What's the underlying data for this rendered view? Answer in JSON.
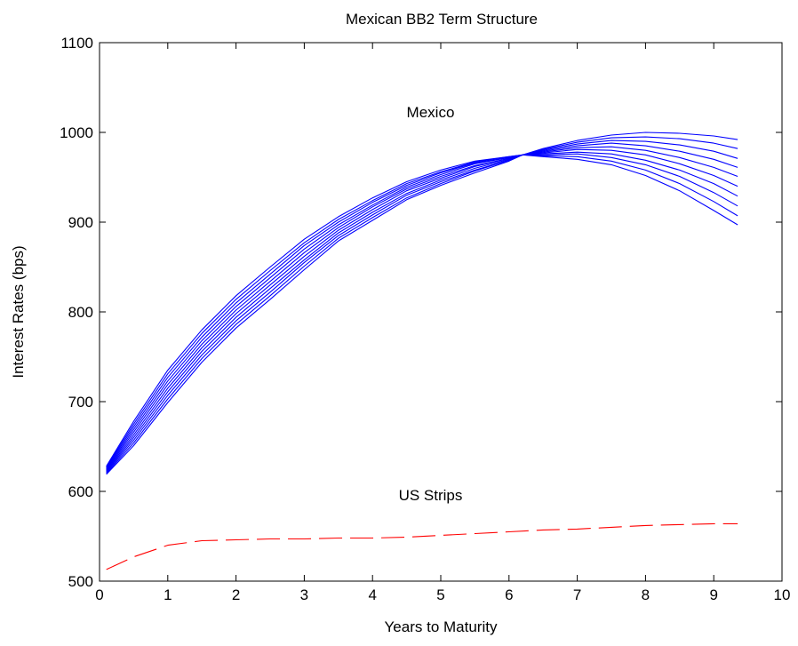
{
  "chart_data": {
    "type": "line",
    "title": "Mexican BB2 Term Structure",
    "xlabel": "Years to Maturity",
    "ylabel": "Interest Rates (bps)",
    "xlim": [
      0,
      10
    ],
    "ylim": [
      500,
      1100
    ],
    "xticks": [
      0,
      1,
      2,
      3,
      4,
      5,
      6,
      7,
      8,
      9,
      10
    ],
    "yticks": [
      500,
      600,
      700,
      800,
      900,
      1000,
      1100
    ],
    "grid": false,
    "annotations": [
      {
        "text": "Mexico",
        "x": 4.85,
        "y": 1017
      },
      {
        "text": "US Strips",
        "x": 4.85,
        "y": 590
      }
    ],
    "series": [
      {
        "color": "#0000ff",
        "style": "solid",
        "x": [
          0.1,
          0.5,
          1,
          1.5,
          2,
          2.5,
          3,
          3.5,
          4,
          4.5,
          5,
          5.5,
          6,
          6.2,
          6.5,
          7,
          7.5,
          8,
          8.5,
          9,
          9.35
        ],
        "y": [
          628,
          678,
          735,
          780,
          818,
          850,
          881,
          906,
          927,
          945,
          958,
          968,
          973,
          975,
          982,
          991,
          997,
          1000,
          999,
          996,
          992
        ]
      },
      {
        "color": "#0000ff",
        "style": "solid",
        "x": [
          0.1,
          0.5,
          1,
          1.5,
          2,
          2.5,
          3,
          3.5,
          4,
          4.5,
          5,
          5.5,
          6,
          6.2,
          6.5,
          7,
          7.5,
          8,
          8.5,
          9,
          9.35
        ],
        "y": [
          627,
          675,
          731,
          776,
          814,
          846,
          877,
          903,
          924,
          943,
          956,
          967,
          973,
          975,
          981,
          989,
          994,
          995,
          993,
          988,
          982
        ]
      },
      {
        "color": "#0000ff",
        "style": "solid",
        "x": [
          0.1,
          0.5,
          1,
          1.5,
          2,
          2.5,
          3,
          3.5,
          4,
          4.5,
          5,
          5.5,
          6,
          6.2,
          6.5,
          7,
          7.5,
          8,
          8.5,
          9,
          9.35
        ],
        "y": [
          626,
          672,
          727,
          772,
          810,
          842,
          874,
          900,
          922,
          941,
          955,
          966,
          972,
          975,
          980,
          987,
          991,
          990,
          986,
          979,
          971
        ]
      },
      {
        "color": "#0000ff",
        "style": "solid",
        "x": [
          0.1,
          0.5,
          1,
          1.5,
          2,
          2.5,
          3,
          3.5,
          4,
          4.5,
          5,
          5.5,
          6,
          6.2,
          6.5,
          7,
          7.5,
          8,
          8.5,
          9,
          9.35
        ],
        "y": [
          625,
          669,
          723,
          768,
          806,
          838,
          870,
          897,
          919,
          939,
          953,
          965,
          972,
          975,
          979,
          985,
          988,
          985,
          979,
          970,
          961
        ]
      },
      {
        "color": "#0000ff",
        "style": "solid",
        "x": [
          0.1,
          0.5,
          1,
          1.5,
          2,
          2.5,
          3,
          3.5,
          4,
          4.5,
          5,
          5.5,
          6,
          6.2,
          6.5,
          7,
          7.5,
          8,
          8.5,
          9,
          9.35
        ],
        "y": [
          624,
          666,
          719,
          764,
          802,
          834,
          866,
          894,
          917,
          937,
          951,
          963,
          971,
          975,
          978,
          983,
          984,
          980,
          972,
          961,
          951
        ]
      },
      {
        "color": "#0000ff",
        "style": "solid",
        "x": [
          0.1,
          0.5,
          1,
          1.5,
          2,
          2.5,
          3,
          3.5,
          4,
          4.5,
          5,
          5.5,
          6,
          6.2,
          6.5,
          7,
          7.5,
          8,
          8.5,
          9,
          9.35
        ],
        "y": [
          623,
          663,
          715,
          760,
          798,
          830,
          862,
          891,
          914,
          935,
          949,
          962,
          971,
          975,
          977,
          981,
          980,
          975,
          965,
          952,
          940
        ]
      },
      {
        "color": "#0000ff",
        "style": "solid",
        "x": [
          0.1,
          0.5,
          1,
          1.5,
          2,
          2.5,
          3,
          3.5,
          4,
          4.5,
          5,
          5.5,
          6,
          6.2,
          6.5,
          7,
          7.5,
          8,
          8.5,
          9,
          9.35
        ],
        "y": [
          622,
          660,
          711,
          756,
          794,
          826,
          858,
          888,
          911,
          932,
          947,
          960,
          970,
          975,
          976,
          978,
          976,
          969,
          958,
          943,
          929
        ]
      },
      {
        "color": "#0000ff",
        "style": "solid",
        "x": [
          0.1,
          0.5,
          1,
          1.5,
          2,
          2.5,
          3,
          3.5,
          4,
          4.5,
          5,
          5.5,
          6,
          6.2,
          6.5,
          7,
          7.5,
          8,
          8.5,
          9,
          9.35
        ],
        "y": [
          621,
          657,
          707,
          752,
          790,
          822,
          855,
          885,
          908,
          930,
          945,
          958,
          969,
          975,
          975,
          976,
          972,
          964,
          951,
          933,
          918
        ]
      },
      {
        "color": "#0000ff",
        "style": "solid",
        "x": [
          0.1,
          0.5,
          1,
          1.5,
          2,
          2.5,
          3,
          3.5,
          4,
          4.5,
          5,
          5.5,
          6,
          6.2,
          6.5,
          7,
          7.5,
          8,
          8.5,
          9,
          9.35
        ],
        "y": [
          620,
          654,
          703,
          748,
          786,
          818,
          851,
          882,
          905,
          927,
          943,
          957,
          969,
          975,
          974,
          973,
          968,
          958,
          943,
          923,
          907
        ]
      },
      {
        "color": "#0000ff",
        "style": "solid",
        "x": [
          0.1,
          0.5,
          1,
          1.5,
          2,
          2.5,
          3,
          3.5,
          4,
          4.5,
          5,
          5.5,
          6,
          6.2,
          6.5,
          7,
          7.5,
          8,
          8.5,
          9,
          9.35
        ],
        "y": [
          619,
          651,
          699,
          744,
          782,
          814,
          847,
          879,
          902,
          925,
          941,
          955,
          968,
          975,
          973,
          970,
          964,
          952,
          935,
          913,
          897
        ]
      },
      {
        "color": "#ff0000",
        "style": "dashed",
        "x": [
          0.1,
          0.5,
          1,
          1.5,
          2,
          2.5,
          3,
          3.5,
          4,
          4.5,
          5,
          5.5,
          6,
          6.5,
          7,
          7.5,
          8,
          8.5,
          9,
          9.35
        ],
        "y": [
          513,
          527,
          540,
          545,
          546,
          547,
          547,
          548,
          548,
          549,
          551,
          553,
          555,
          557,
          558,
          560,
          562,
          563,
          564,
          564
        ]
      }
    ]
  }
}
